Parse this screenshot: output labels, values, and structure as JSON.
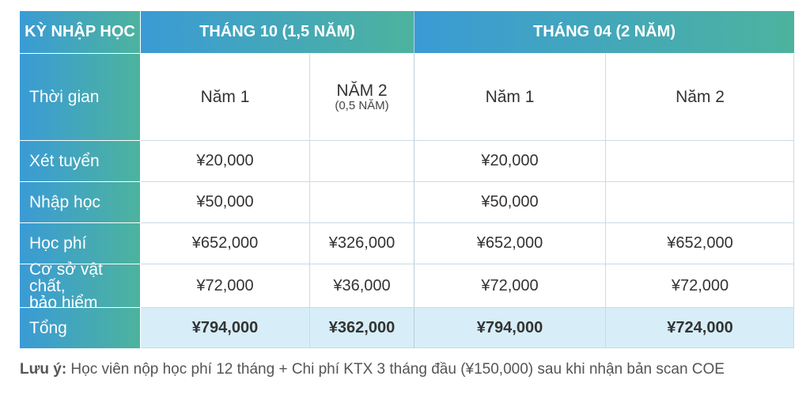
{
  "header": {
    "corner": "KỲ NHẬP HỌC",
    "group1": "THÁNG 10 (1,5 NĂM)",
    "group2": "THÁNG 04 (2 NĂM)"
  },
  "subheader": {
    "label": "Thời gian",
    "col1": "Năm 1",
    "col2_main": "NĂM 2",
    "col2_sub": "(0,5 NĂM)",
    "col3": "Năm 1",
    "col4": "Năm 2"
  },
  "rows": [
    {
      "label": "Xét tuyển",
      "cells": [
        "¥20,000",
        "",
        "¥20,000",
        ""
      ]
    },
    {
      "label": "Nhập học",
      "cells": [
        "¥50,000",
        "",
        "¥50,000",
        ""
      ]
    },
    {
      "label": "Học phí",
      "cells": [
        "¥652,000",
        "¥326,000",
        "¥652,000",
        "¥652,000"
      ]
    },
    {
      "label_line1": "Cơ sở vật chất,",
      "label_line2": "bảo hiểm",
      "cells": [
        "¥72,000",
        "¥36,000",
        "¥72,000",
        "¥72,000"
      ]
    }
  ],
  "total": {
    "label": "Tổng",
    "cells": [
      "¥794,000",
      "¥362,000",
      "¥794,000",
      "¥724,000"
    ]
  },
  "note": {
    "prefix": "Lưu ý:",
    "text": " Học viên nộp học phí 12 tháng + Chi phí KTX 3 tháng đầu (¥150,000) sau khi nhận bản scan COE"
  }
}
